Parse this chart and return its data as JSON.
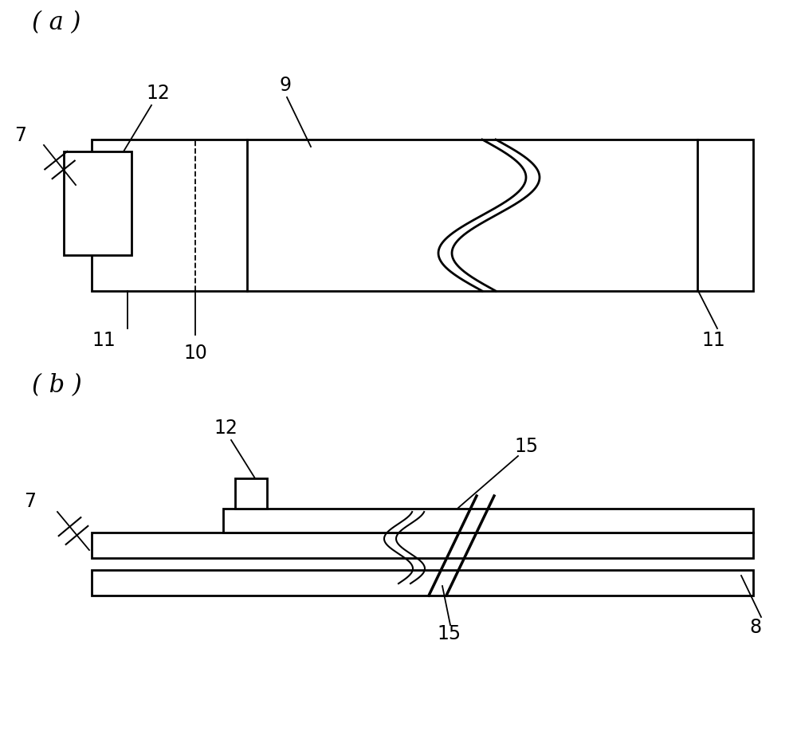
{
  "bg_color": "#ffffff",
  "line_color": "#000000",
  "label_a": "( a )",
  "label_b": "( b )",
  "font_size_label": 22,
  "font_size_num": 17
}
